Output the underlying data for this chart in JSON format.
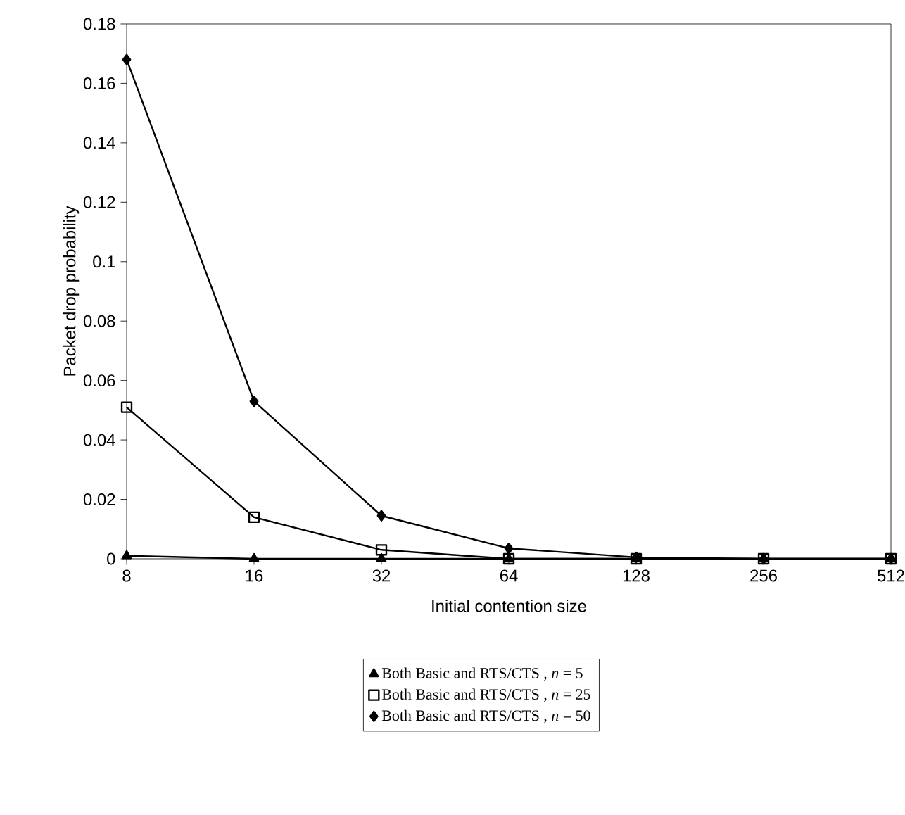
{
  "chart_data": {
    "type": "line",
    "xlabel": "Initial contention size",
    "ylabel": "Packet drop probability",
    "categories": [
      "8",
      "16",
      "32",
      "64",
      "128",
      "256",
      "512"
    ],
    "ylim": [
      0,
      0.18
    ],
    "yticks": [
      0,
      0.02,
      0.04,
      0.06,
      0.08,
      0.1,
      0.12,
      0.14,
      0.16,
      0.18
    ],
    "series": [
      {
        "name": "Both Basic and RTS/CTS , *n* = 5",
        "color": "#000000",
        "marker": "triangle",
        "values": [
          0.001,
          0,
          0,
          0,
          0,
          0,
          0
        ]
      },
      {
        "name": "Both Basic and RTS/CTS , *n* = 25",
        "color": "#000000",
        "marker": "square",
        "values": [
          0.051,
          0.014,
          0.003,
          0,
          0,
          0,
          0
        ]
      },
      {
        "name": "Both Basic and RTS/CTS , *n* = 50",
        "color": "#000000",
        "marker": "diamond",
        "values": [
          0.168,
          0.053,
          0.0145,
          0.0035,
          0.0005,
          0,
          0
        ]
      }
    ],
    "legend": "bottom",
    "grid": false,
    "line_style": "solid"
  }
}
